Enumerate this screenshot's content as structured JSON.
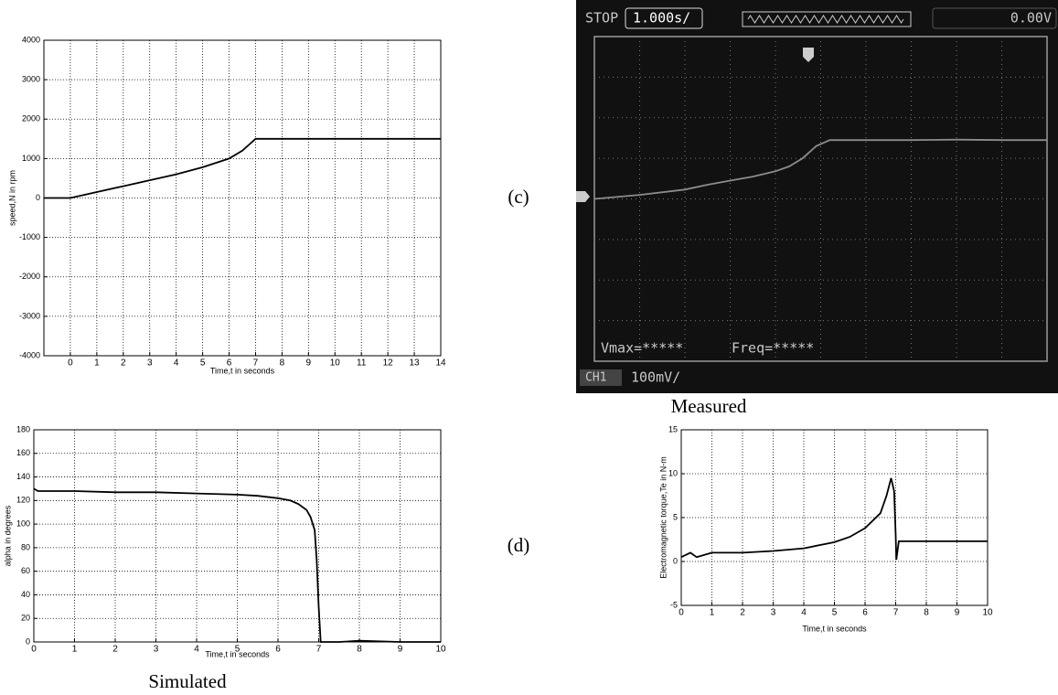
{
  "panel_labels": [
    "(c)",
    "(d)"
  ],
  "chart_data": [
    {
      "type": "line",
      "xlabel": "Time,t in seconds",
      "ylabel": "speed,N in rpm",
      "xlim": [
        -1,
        14
      ],
      "xticks": [
        0,
        1,
        2,
        3,
        4,
        5,
        6,
        7,
        8,
        9,
        10,
        11,
        12,
        13,
        14
      ],
      "ylim": [
        -4000,
        4000
      ],
      "yticks": [
        -4000,
        -3000,
        -2000,
        -1000,
        0,
        1000,
        2000,
        3000,
        4000
      ],
      "grid": true,
      "color": "#000000",
      "x": [
        -1,
        0,
        1,
        2,
        3,
        4,
        5,
        6,
        6.5,
        6.8,
        7,
        8,
        10,
        12,
        14
      ],
      "values": [
        0,
        0,
        150,
        300,
        450,
        600,
        780,
        1000,
        1200,
        1380,
        1500,
        1500,
        1500,
        1500,
        1500
      ]
    },
    {
      "type": "oscilloscope",
      "caption": "Measured",
      "annotations": [
        "STOP",
        "1.000s/",
        "0.00V",
        "Vmax=*****",
        "Freq=*****",
        "CH1",
        "100mV/"
      ],
      "xlim": [
        0,
        10
      ],
      "ylim": [
        -4,
        4
      ],
      "color": "#8c8c8c",
      "x": [
        0,
        1,
        2,
        2.5,
        3,
        3.5,
        4,
        4.3,
        4.6,
        4.9,
        5.2,
        6,
        7,
        8,
        9,
        10
      ],
      "values": [
        0,
        0.1,
        0.23,
        0.35,
        0.45,
        0.55,
        0.68,
        0.8,
        1.0,
        1.3,
        1.45,
        1.45,
        1.45,
        1.46,
        1.45,
        1.45
      ]
    },
    {
      "type": "line",
      "caption": "Simulated",
      "xlabel": "Time,t in seconds",
      "ylabel": "alpha in degrees",
      "xlim": [
        0,
        10
      ],
      "xticks": [
        0,
        1,
        2,
        3,
        4,
        5,
        6,
        7,
        8,
        9,
        10
      ],
      "ylim": [
        0,
        180
      ],
      "yticks": [
        0,
        20,
        40,
        60,
        80,
        100,
        120,
        140,
        160,
        180
      ],
      "grid": true,
      "color": "#000000",
      "x": [
        0,
        0.1,
        1,
        2,
        3,
        4,
        5,
        5.5,
        6,
        6.3,
        6.5,
        6.7,
        6.8,
        6.9,
        6.95,
        7,
        7.05,
        7.5,
        8,
        9,
        10
      ],
      "values": [
        130,
        128,
        128,
        127,
        127,
        126,
        125,
        124,
        122,
        120,
        117,
        112,
        106,
        95,
        70,
        30,
        0,
        0,
        1,
        0,
        0
      ]
    },
    {
      "type": "line",
      "xlabel": "Time,t in seconds",
      "ylabel": "Electromagnetic torque,Te in N-m",
      "xlim": [
        0,
        10
      ],
      "xticks": [
        0,
        1,
        2,
        3,
        4,
        5,
        6,
        7,
        8,
        9,
        10
      ],
      "ylim": [
        -5,
        15
      ],
      "yticks": [
        -5,
        0,
        5,
        10,
        15
      ],
      "grid": true,
      "color": "#000000",
      "x": [
        0,
        0.3,
        0.5,
        1,
        2,
        3,
        4,
        5,
        5.5,
        6,
        6.5,
        6.7,
        6.85,
        6.95,
        7,
        7.02,
        7.1,
        8,
        9,
        10
      ],
      "values": [
        0.5,
        1,
        0.5,
        1,
        1,
        1.2,
        1.5,
        2.2,
        2.8,
        3.8,
        5.5,
        7.5,
        9.5,
        8,
        3,
        0.2,
        2.3,
        2.3,
        2.3,
        2.3
      ]
    }
  ]
}
